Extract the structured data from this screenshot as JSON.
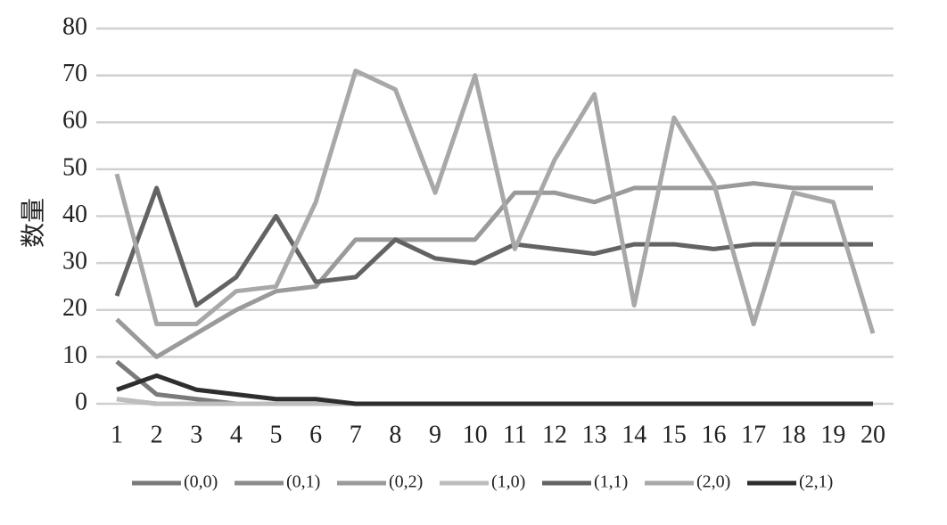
{
  "chart_data": {
    "type": "line",
    "y_label": "数量",
    "categories": [
      "1",
      "2",
      "3",
      "4",
      "5",
      "6",
      "7",
      "8",
      "9",
      "10",
      "11",
      "12",
      "13",
      "14",
      "15",
      "16",
      "17",
      "18",
      "19",
      "20"
    ],
    "ylim": [
      0,
      80
    ],
    "yticks": [
      0,
      10,
      20,
      30,
      40,
      50,
      60,
      70,
      80
    ],
    "grid": true,
    "series": [
      {
        "name": "(0,0)",
        "color": "#7a7a7a",
        "values": [
          9,
          2,
          1,
          0,
          0,
          0,
          0,
          0,
          0,
          0,
          0,
          0,
          0,
          0,
          0,
          0,
          0,
          0,
          0,
          0
        ]
      },
      {
        "name": "(0,1)",
        "color": "#8c8c8c",
        "values": [
          1,
          0,
          0,
          0,
          0,
          0,
          0,
          0,
          0,
          0,
          0,
          0,
          0,
          0,
          0,
          0,
          0,
          0,
          0,
          0
        ]
      },
      {
        "name": "(0,2)",
        "color": "#9a9a9a",
        "values": [
          18,
          10,
          15,
          20,
          24,
          25,
          35,
          35,
          35,
          35,
          45,
          45,
          43,
          46,
          46,
          46,
          47,
          46,
          46,
          46
        ]
      },
      {
        "name": "(1,0)",
        "color": "#bdbdbd",
        "values": [
          1,
          0,
          0,
          0,
          0,
          0,
          0,
          0,
          0,
          0,
          0,
          0,
          0,
          0,
          0,
          0,
          0,
          0,
          0,
          0
        ]
      },
      {
        "name": "(1,1)",
        "color": "#636363",
        "values": [
          23,
          46,
          21,
          27,
          40,
          26,
          27,
          35,
          31,
          30,
          34,
          33,
          32,
          34,
          34,
          33,
          34,
          34,
          34,
          34
        ]
      },
      {
        "name": "(2,0)",
        "color": "#a8a8a8",
        "values": [
          49,
          17,
          17,
          24,
          25,
          43,
          71,
          67,
          45,
          70,
          33,
          52,
          66,
          21,
          61,
          47,
          17,
          45,
          43,
          15
        ]
      },
      {
        "name": "(2,1)",
        "color": "#2e2e2e",
        "values": [
          3,
          6,
          3,
          2,
          1,
          1,
          0,
          0,
          0,
          0,
          0,
          0,
          0,
          0,
          0,
          0,
          0,
          0,
          0,
          0
        ]
      }
    ]
  }
}
